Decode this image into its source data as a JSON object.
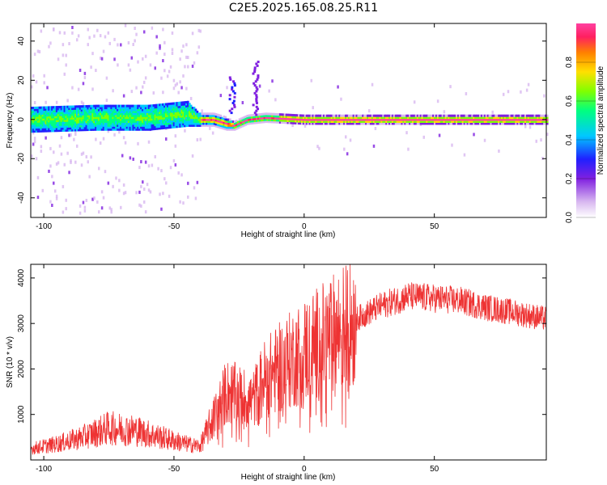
{
  "title": "C2E5.2025.165.08.25.R11",
  "colors": {
    "snr_line": "#ee3333",
    "spectrum_core": "#ff3030",
    "frame": "#000000"
  },
  "chart_data": [
    {
      "type": "heatmap",
      "name": "spectrogram",
      "xlabel": "Height of straight line (km)",
      "ylabel": "Frequency (Hz)",
      "xlim": [
        -105,
        93
      ],
      "ylim": [
        -50,
        49
      ],
      "xticks": [
        -100,
        -50,
        0,
        50
      ],
      "yticks": [
        -40,
        -20,
        0,
        20,
        40
      ],
      "colorbar": {
        "label": "Normalized spectral amplitude",
        "range": [
          0.0,
          1.0
        ],
        "ticks": [
          "0.0",
          "0.2",
          "0.4",
          "0.6",
          "0.8"
        ],
        "colormap": [
          "#ffffff",
          "#d8b8f0",
          "#8020e0",
          "#2020ff",
          "#00c8ff",
          "#00ff80",
          "#80ff00",
          "#ffe000",
          "#ff8000",
          "#ff2060",
          "#ff40a0"
        ]
      },
      "ridge": {
        "x": [
          -105,
          -80,
          -60,
          -45,
          -40,
          -35,
          -30,
          -27,
          -22,
          -15,
          0,
          20,
          50,
          93
        ],
        "center_hz": [
          0,
          1,
          1,
          3,
          0,
          0,
          -2,
          -3,
          0,
          1,
          0,
          0,
          0,
          0
        ],
        "halfwidth_hz": [
          6,
          6,
          6,
          6,
          3,
          3,
          3,
          2,
          2,
          2,
          2,
          2,
          2,
          2
        ]
      }
    },
    {
      "type": "line",
      "name": "snr",
      "xlabel": "Height of straight line (km)",
      "ylabel": "SNR (10 * v/v)",
      "xlim": [
        -105,
        93
      ],
      "ylim": [
        0,
        4300
      ],
      "xticks": [
        -100,
        -50,
        0,
        50
      ],
      "yticks": [
        1000,
        2000,
        3000,
        4000
      ],
      "envelope": {
        "x": [
          -105,
          -95,
          -85,
          -75,
          -65,
          -55,
          -45,
          -40,
          -35,
          -30,
          -25,
          -20,
          -15,
          -10,
          -5,
          0,
          10,
          20,
          30,
          40,
          50,
          60,
          70,
          80,
          93
        ],
        "y": [
          250,
          350,
          500,
          700,
          650,
          500,
          350,
          300,
          900,
          1500,
          1400,
          1300,
          1800,
          2000,
          2200,
          2400,
          2700,
          3100,
          3400,
          3600,
          3550,
          3500,
          3350,
          3250,
          3100
        ]
      }
    }
  ]
}
